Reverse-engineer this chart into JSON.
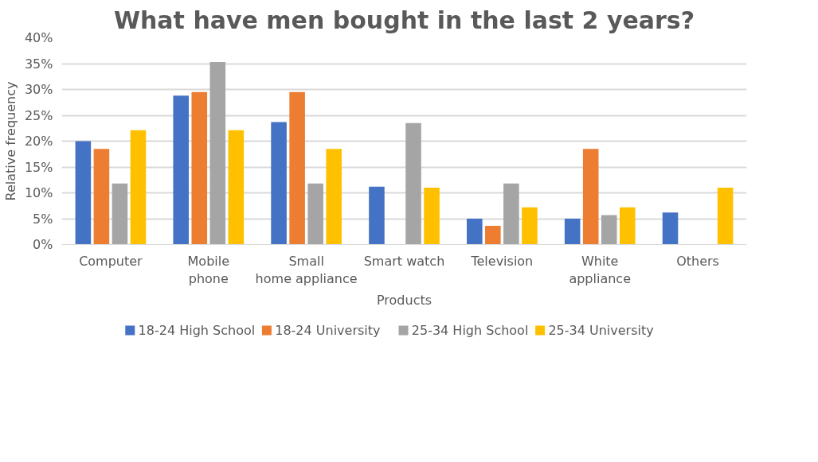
{
  "chart_data": {
    "type": "bar",
    "title": "What have men bought in the last 2 years?",
    "xlabel": "Products",
    "ylabel": "Relative frequency",
    "categories": [
      "Computer",
      "Mobile phone",
      "Small home appliance",
      "Smart watch",
      "Television",
      "White appliance",
      "Others"
    ],
    "series": [
      {
        "name": "18-24 High School",
        "color": "#4472c4",
        "values": [
          20,
          28.8,
          23.7,
          11.2,
          5.0,
          5.0,
          6.2
        ]
      },
      {
        "name": "18-24 University",
        "color": "#ed7d31",
        "values": [
          18.5,
          29.5,
          29.5,
          0,
          3.6,
          18.5,
          0
        ]
      },
      {
        "name": "25-34 High School",
        "color": "#a5a5a5",
        "values": [
          11.8,
          35.3,
          11.8,
          23.5,
          11.8,
          5.7,
          0
        ]
      },
      {
        "name": "25-34 University",
        "color": "#ffc000",
        "values": [
          22.1,
          22.1,
          18.5,
          11.0,
          7.2,
          7.2,
          11.0
        ]
      }
    ],
    "ylim": [
      0,
      40
    ],
    "yticks": [
      {
        "value": 0,
        "label": "0%"
      },
      {
        "value": 5,
        "label": "5%"
      },
      {
        "value": 10,
        "label": "10%"
      },
      {
        "value": 15,
        "label": "15%"
      },
      {
        "value": 20,
        "label": "20%"
      },
      {
        "value": 25,
        "label": "25%"
      },
      {
        "value": 30,
        "label": "30%"
      },
      {
        "value": 35,
        "label": "35%"
      },
      {
        "value": 40,
        "label": "40%"
      }
    ],
    "grid": "y",
    "legend": "bottom"
  }
}
